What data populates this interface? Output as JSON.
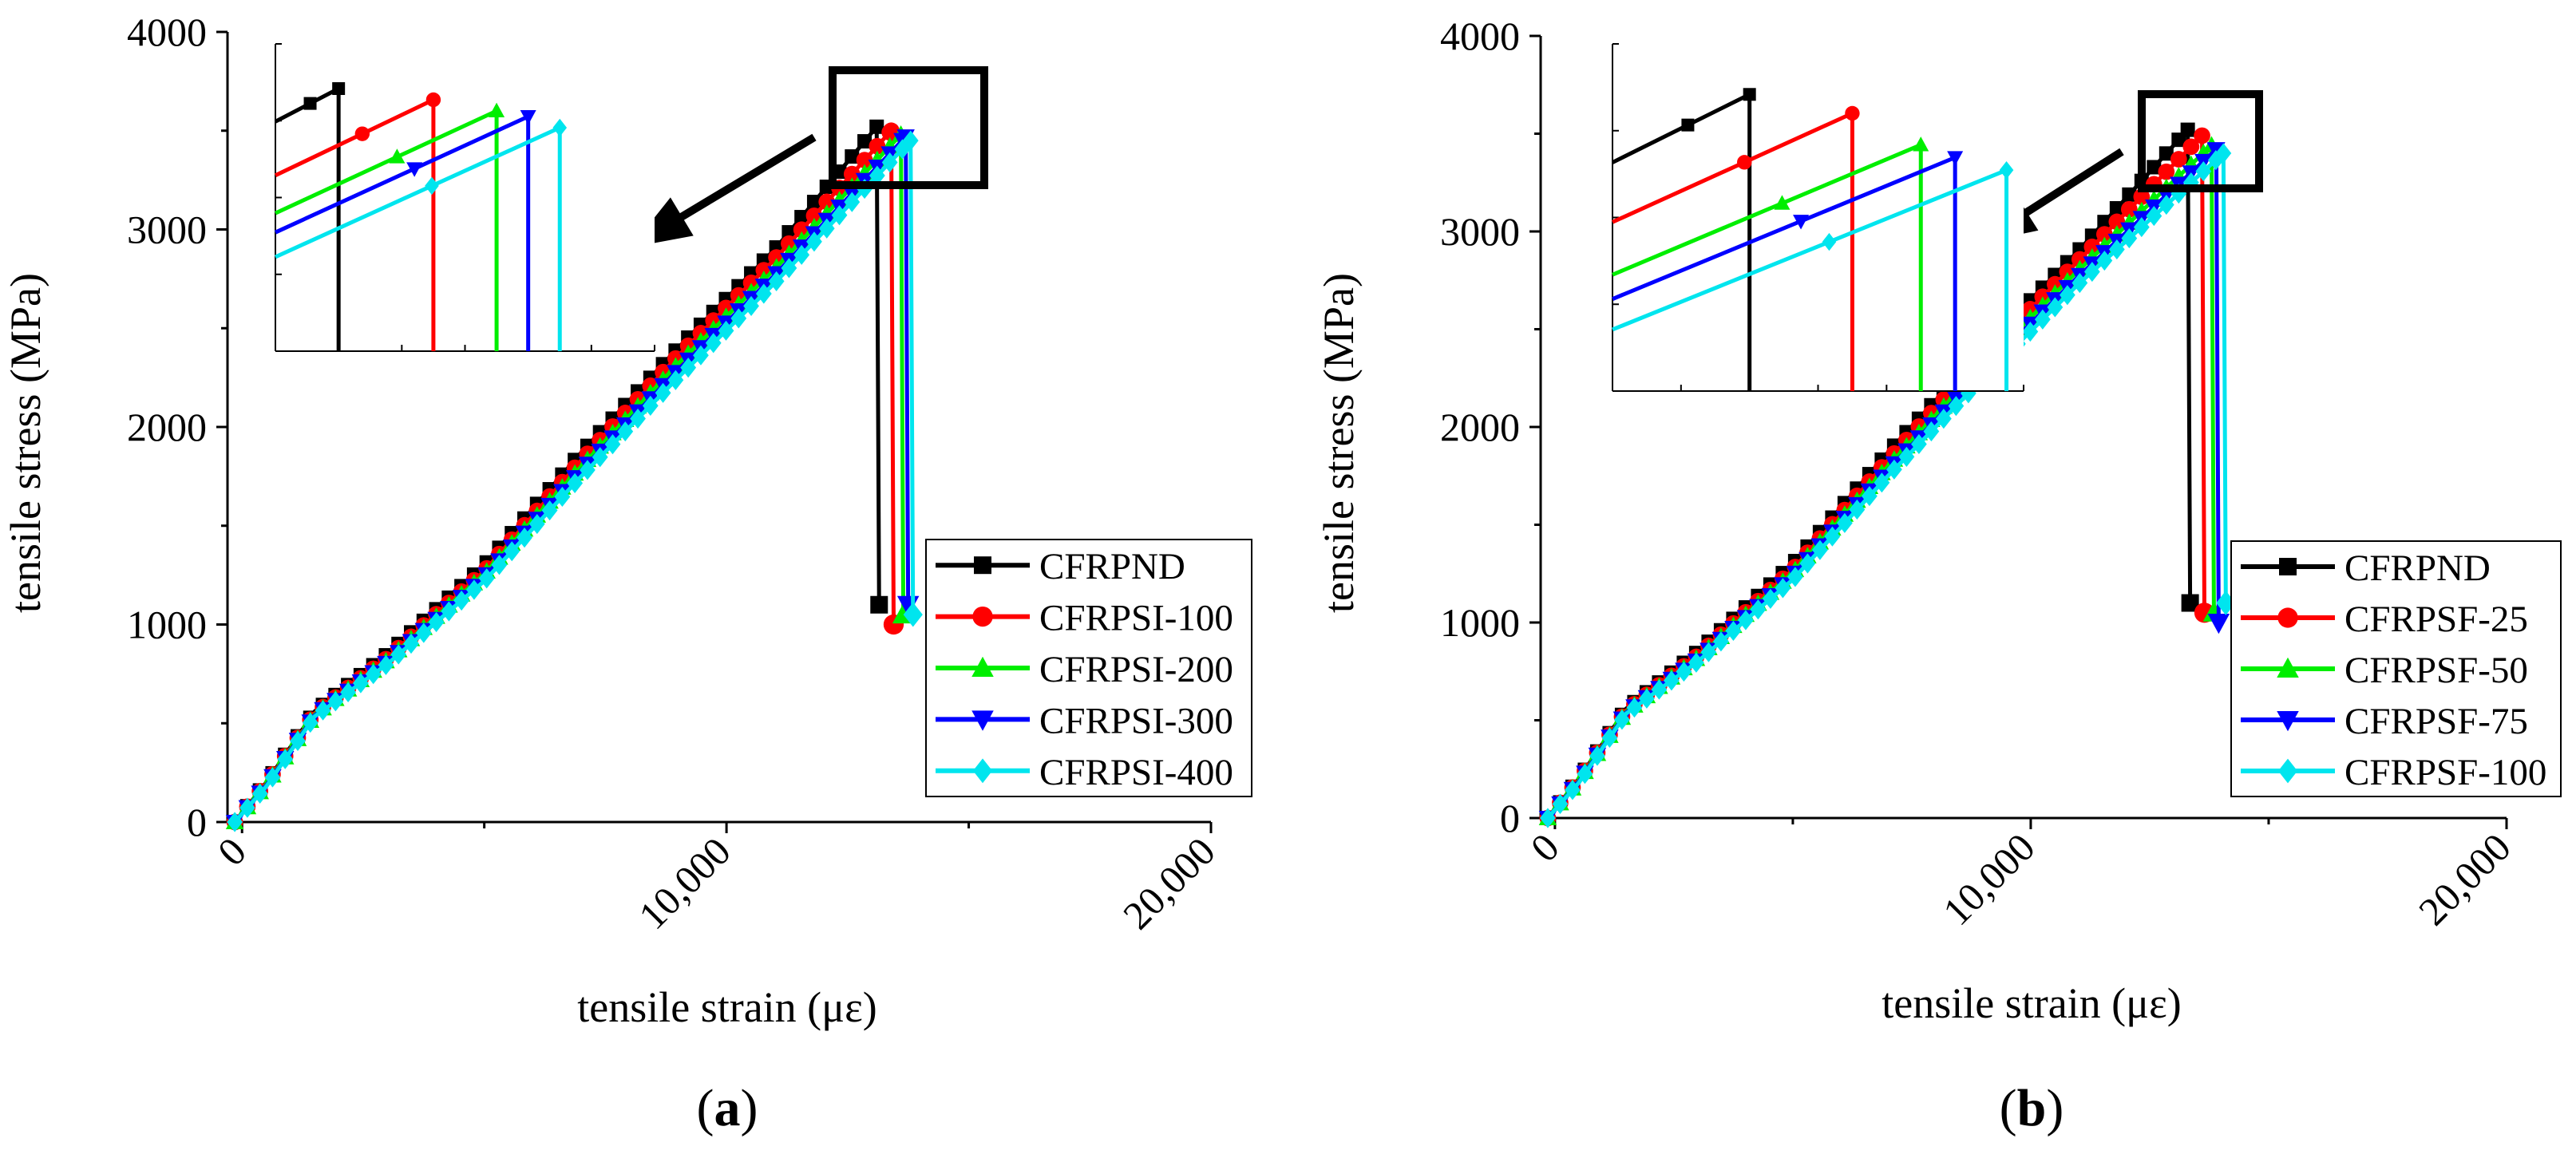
{
  "chart_data": [
    {
      "type": "line",
      "panel_label": "(a)",
      "panel_letter": "a",
      "xlabel": "tensile strain (με)",
      "ylabel": "tensile stress (MPa)",
      "xlim": [
        -300,
        20000
      ],
      "ylim": [
        0,
        4000
      ],
      "xticks": [
        0,
        10000,
        20000
      ],
      "xtick_labels": [
        "0",
        "10,000",
        "20,000"
      ],
      "yticks": [
        0,
        1000,
        2000,
        3000,
        4000
      ],
      "ytick_labels": [
        "0",
        "1000",
        "2000",
        "3000",
        "4000"
      ],
      "legend_position": "lower-right",
      "inset": {
        "description": "zoom of peak region",
        "x_range": [
          12900,
          14100
        ],
        "y_range": [
          3050,
          3600
        ]
      },
      "series": [
        {
          "name": "CFRPND",
          "color": "#000000",
          "marker": "square",
          "points": [
            [
              -150,
              0
            ],
            [
              500,
              200
            ],
            [
              1500,
              560
            ],
            [
              3000,
              850
            ],
            [
              5000,
              1300
            ],
            [
              7000,
              1870
            ],
            [
              9000,
              2400
            ],
            [
              11000,
              2900
            ],
            [
              13100,
              3520
            ]
          ],
          "fracture_strain": 13150,
          "residual_stress": 1100
        },
        {
          "name": "CFRPSI-100",
          "color": "#ff0000",
          "marker": "circle",
          "points": [
            [
              -150,
              0
            ],
            [
              500,
              195
            ],
            [
              1500,
              550
            ],
            [
              3000,
              830
            ],
            [
              5000,
              1270
            ],
            [
              7000,
              1830
            ],
            [
              9000,
              2360
            ],
            [
              11000,
              2850
            ],
            [
              13400,
              3500
            ]
          ],
          "fracture_strain": 13450,
          "residual_stress": 1000
        },
        {
          "name": "CFRPSI-200",
          "color": "#00ee00",
          "marker": "triangle-up",
          "points": [
            [
              -150,
              0
            ],
            [
              500,
              190
            ],
            [
              1500,
              545
            ],
            [
              3000,
              820
            ],
            [
              5000,
              1255
            ],
            [
              7000,
              1800
            ],
            [
              9000,
              2320
            ],
            [
              11000,
              2800
            ],
            [
              13600,
              3480
            ]
          ],
          "fracture_strain": 13650,
          "residual_stress": 1050
        },
        {
          "name": "CFRPSI-300",
          "color": "#0000ff",
          "marker": "triangle-down",
          "points": [
            [
              -150,
              0
            ],
            [
              500,
              185
            ],
            [
              1500,
              540
            ],
            [
              3000,
              810
            ],
            [
              5000,
              1240
            ],
            [
              7000,
              1780
            ],
            [
              9000,
              2290
            ],
            [
              11000,
              2770
            ],
            [
              13700,
              3470
            ]
          ],
          "fracture_strain": 13750,
          "residual_stress": 1100
        },
        {
          "name": "CFRPSI-400",
          "color": "#00e5ee",
          "marker": "diamond",
          "points": [
            [
              -150,
              0
            ],
            [
              500,
              180
            ],
            [
              1500,
              535
            ],
            [
              3000,
              800
            ],
            [
              5000,
              1220
            ],
            [
              7000,
              1750
            ],
            [
              9000,
              2250
            ],
            [
              11000,
              2730
            ],
            [
              13800,
              3450
            ]
          ],
          "fracture_strain": 13850,
          "residual_stress": 1050
        }
      ]
    },
    {
      "type": "line",
      "panel_label": "(b)",
      "panel_letter": "b",
      "xlabel": "tensile strain (με)",
      "ylabel": "tensile stress (MPa)",
      "xlim": [
        -300,
        20000
      ],
      "ylim": [
        0,
        4000
      ],
      "xticks": [
        0,
        10000,
        20000
      ],
      "xtick_labels": [
        "0",
        "10,000",
        "20,000"
      ],
      "yticks": [
        0,
        1000,
        2000,
        3000,
        4000
      ],
      "ytick_labels": [
        "0",
        "1000",
        "2000",
        "3000",
        "4000"
      ],
      "legend_position": "lower-right",
      "inset": {
        "description": "zoom of peak region",
        "x_range": [
          12900,
          14100
        ],
        "y_range": [
          3050,
          3600
        ]
      },
      "series": [
        {
          "name": "CFRPND",
          "color": "#000000",
          "marker": "square",
          "points": [
            [
              -150,
              0
            ],
            [
              500,
              200
            ],
            [
              1500,
              560
            ],
            [
              3000,
              850
            ],
            [
              5000,
              1300
            ],
            [
              7000,
              1870
            ],
            [
              9000,
              2400
            ],
            [
              11000,
              2900
            ],
            [
              13300,
              3520
            ]
          ],
          "fracture_strain": 13350,
          "residual_stress": 1100
        },
        {
          "name": "CFRPSF-25",
          "color": "#ff0000",
          "marker": "circle",
          "points": [
            [
              -150,
              0
            ],
            [
              500,
              195
            ],
            [
              1500,
              550
            ],
            [
              3000,
              830
            ],
            [
              5000,
              1270
            ],
            [
              7000,
              1830
            ],
            [
              9000,
              2360
            ],
            [
              11000,
              2850
            ],
            [
              13600,
              3490
            ]
          ],
          "fracture_strain": 13650,
          "residual_stress": 1050
        },
        {
          "name": "CFRPSF-50",
          "color": "#00ee00",
          "marker": "triangle-up",
          "points": [
            [
              -150,
              0
            ],
            [
              500,
              190
            ],
            [
              1500,
              545
            ],
            [
              3000,
              820
            ],
            [
              5000,
              1255
            ],
            [
              7000,
              1800
            ],
            [
              9000,
              2320
            ],
            [
              11000,
              2800
            ],
            [
              13800,
              3440
            ]
          ],
          "fracture_strain": 13850,
          "residual_stress": 1050
        },
        {
          "name": "CFRPSF-75",
          "color": "#0000ff",
          "marker": "triangle-down",
          "points": [
            [
              -150,
              0
            ],
            [
              500,
              185
            ],
            [
              1500,
              540
            ],
            [
              3000,
              810
            ],
            [
              5000,
              1240
            ],
            [
              7000,
              1780
            ],
            [
              9000,
              2290
            ],
            [
              11000,
              2770
            ],
            [
              13900,
              3420
            ]
          ],
          "fracture_strain": 13950,
          "residual_stress": 1000
        },
        {
          "name": "CFRPSF-100",
          "color": "#00e5ee",
          "marker": "diamond",
          "points": [
            [
              -150,
              0
            ],
            [
              500,
              180
            ],
            [
              1500,
              535
            ],
            [
              3000,
              800
            ],
            [
              5000,
              1220
            ],
            [
              7000,
              1750
            ],
            [
              9000,
              2250
            ],
            [
              11000,
              2730
            ],
            [
              14050,
              3400
            ]
          ],
          "fracture_strain": 14100,
          "residual_stress": 1100
        }
      ]
    }
  ]
}
